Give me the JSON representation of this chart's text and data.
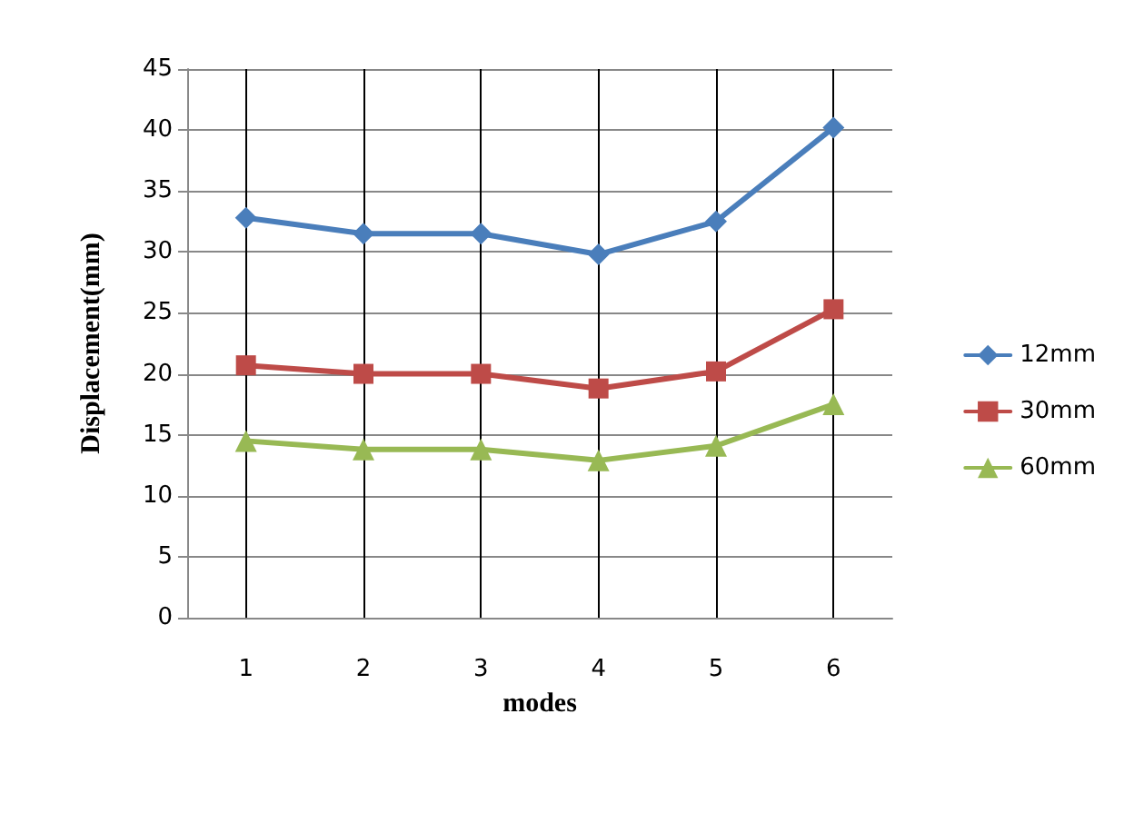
{
  "chart_data": {
    "type": "line",
    "xlabel": "modes",
    "ylabel": "Displacement(mm)",
    "x": [
      1,
      2,
      3,
      4,
      5,
      6
    ],
    "xlim": [
      0.5,
      6.5
    ],
    "xticks": [
      1,
      2,
      3,
      4,
      5,
      6
    ],
    "ylim": [
      0,
      45
    ],
    "yticks": [
      0,
      5,
      10,
      15,
      20,
      25,
      30,
      35,
      40,
      45
    ],
    "grid": true,
    "legend": "right",
    "line_style": "solid",
    "series": [
      {
        "name": "12mm",
        "color": "#4a7ebb",
        "marker": "diamond",
        "values": [
          32.8,
          31.5,
          31.5,
          29.8,
          32.5,
          40.2
        ]
      },
      {
        "name": "30mm",
        "color": "#be4b48",
        "marker": "square",
        "values": [
          20.7,
          20.0,
          20.0,
          18.8,
          20.2,
          25.3
        ]
      },
      {
        "name": "60mm",
        "color": "#98b954",
        "marker": "triangle",
        "values": [
          14.5,
          13.8,
          13.8,
          12.9,
          14.1,
          17.5
        ]
      }
    ]
  }
}
